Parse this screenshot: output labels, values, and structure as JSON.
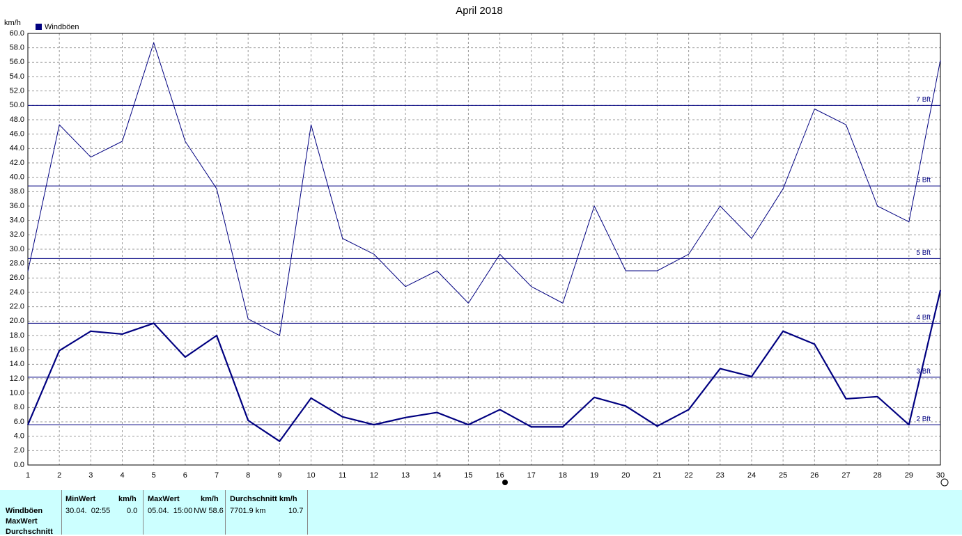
{
  "chart_data": {
    "type": "line",
    "title": "April 2018",
    "y_label": "km/h",
    "legend": {
      "label": "Windböen",
      "color": "#000080"
    },
    "x": [
      1,
      2,
      3,
      4,
      5,
      6,
      7,
      8,
      9,
      10,
      11,
      12,
      13,
      14,
      15,
      16,
      17,
      18,
      19,
      20,
      21,
      22,
      23,
      24,
      25,
      26,
      27,
      28,
      29,
      30
    ],
    "xlim": [
      1,
      30
    ],
    "xticks": [
      1,
      2,
      3,
      4,
      5,
      6,
      7,
      8,
      9,
      10,
      11,
      12,
      13,
      14,
      15,
      16,
      17,
      18,
      19,
      20,
      21,
      22,
      23,
      24,
      25,
      26,
      27,
      28,
      29,
      30
    ],
    "series": [
      {
        "color": "#000080",
        "width": 1,
        "values": [
          26.9,
          47.3,
          42.8,
          45.0,
          58.7,
          45.0,
          38.4,
          20.3,
          18.0,
          47.3,
          31.5,
          29.3,
          24.8,
          27.0,
          22.5,
          29.3,
          24.8,
          22.5,
          36.0,
          27.0,
          27.0,
          29.3,
          36.0,
          31.5,
          38.4,
          49.5,
          47.3,
          36.0,
          33.8,
          56.3
        ]
      },
      {
        "color": "#000080",
        "width": 2.2,
        "values": [
          5.6,
          15.9,
          18.6,
          18.2,
          19.7,
          15.0,
          18.0,
          6.2,
          3.3,
          9.3,
          6.7,
          5.6,
          6.6,
          7.3,
          5.6,
          7.7,
          5.3,
          5.3,
          9.4,
          8.2,
          5.4,
          7.7,
          13.4,
          12.3,
          18.6,
          16.8,
          9.2,
          9.5,
          5.6,
          24.3
        ]
      }
    ],
    "ylim": [
      0,
      60
    ],
    "yticks": [
      {
        "value": 0,
        "label": "0.0"
      },
      {
        "value": 2,
        "label": "2.0"
      },
      {
        "value": 4,
        "label": "4.0"
      },
      {
        "value": 6,
        "label": "6.0"
      },
      {
        "value": 8,
        "label": "8.0"
      },
      {
        "value": 10,
        "label": "10.0"
      },
      {
        "value": 12,
        "label": "12.0"
      },
      {
        "value": 14,
        "label": "14.0"
      },
      {
        "value": 16,
        "label": "16.0"
      },
      {
        "value": 18,
        "label": "18.0"
      },
      {
        "value": 20,
        "label": "20.0"
      },
      {
        "value": 22,
        "label": "22.0"
      },
      {
        "value": 24,
        "label": "24.0"
      },
      {
        "value": 26,
        "label": "26.0"
      },
      {
        "value": 28,
        "label": "28.0"
      },
      {
        "value": 30,
        "label": "30.0"
      },
      {
        "value": 32,
        "label": "32.0"
      },
      {
        "value": 34,
        "label": "34.0"
      },
      {
        "value": 36,
        "label": "36.0"
      },
      {
        "value": 38,
        "label": "38.0"
      },
      {
        "value": 40,
        "label": "40.0"
      },
      {
        "value": 42,
        "label": "42.0"
      },
      {
        "value": 44,
        "label": "44.0"
      },
      {
        "value": 46,
        "label": "46.0"
      },
      {
        "value": 48,
        "label": "48.0"
      },
      {
        "value": 50,
        "label": "50.0"
      },
      {
        "value": 52,
        "label": "52.0"
      },
      {
        "value": 54,
        "label": "54.0"
      },
      {
        "value": 56,
        "label": "56.0"
      },
      {
        "value": 58,
        "label": "58.0"
      },
      {
        "value": 60,
        "label": "60.0"
      }
    ],
    "ref_lines": [
      {
        "value": 50,
        "label": "7 Bft"
      },
      {
        "value": 38.8,
        "label": "6 Bft"
      },
      {
        "value": 28.7,
        "label": "5 Bft"
      },
      {
        "value": 19.7,
        "label": "4 Bft"
      },
      {
        "value": 12.2,
        "label": "3 Bft"
      },
      {
        "value": 5.6,
        "label": "2 Bft"
      }
    ],
    "grid": true
  },
  "table": {
    "row_labels": [
      "Windböen",
      "MaxWert",
      "Durchschnitt"
    ],
    "groups": [
      {
        "header": "MinWert",
        "unit": "km/h",
        "cells": [
          "30.04.  02:55",
          "0.0"
        ]
      },
      {
        "header": "MaxWert",
        "unit": "km/h",
        "cells": [
          "05.04.  15:00",
          "NW 58.6"
        ]
      },
      {
        "header": "Durchschnitt km/h",
        "cells": [
          "7701.9 km",
          "10.7"
        ]
      }
    ]
  }
}
